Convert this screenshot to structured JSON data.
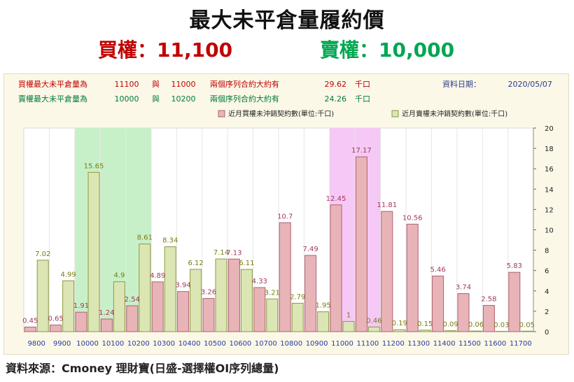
{
  "header": {
    "title": "最大未平倉量履約價",
    "call_label": "買權：11,100",
    "put_label": "賣權：10,000"
  },
  "info": {
    "call_row": {
      "label": "買權最大未平倉量為",
      "strike1": "11100",
      "conn": "與",
      "strike2": "11000",
      "desc": "兩個序列合約大約有",
      "value": "29.62",
      "unit": "千口"
    },
    "put_row": {
      "label": "賣權最大未平倉量為",
      "strike1": "10000",
      "conn": "與",
      "strike2": "10200",
      "desc": "兩個序列合約大約有",
      "value": "24.26",
      "unit": "千口"
    },
    "date_label": "資料日期：",
    "date_value": "2020/05/07"
  },
  "colors": {
    "call_fill": "#e8b4b8",
    "call_stroke": "#b06070",
    "put_fill": "#dce6b4",
    "put_stroke": "#8a9a40",
    "call_text": "#a03a5a",
    "put_text": "#7a7a10",
    "green_highlight": "#c8f0c8",
    "pink_highlight": "#f5c8f5"
  },
  "chart_data": {
    "type": "bar",
    "categories": [
      "9800",
      "9900",
      "10000",
      "10100",
      "10200",
      "10300",
      "10400",
      "10500",
      "10600",
      "10700",
      "10800",
      "10900",
      "11000",
      "11100",
      "11200",
      "11300",
      "11400",
      "11500",
      "11600",
      "11700"
    ],
    "series": [
      {
        "name": "近月買權未沖銷契約數(單位:千口)",
        "values": [
          0.45,
          0.65,
          1.91,
          1.24,
          2.54,
          4.89,
          3.94,
          3.26,
          7.13,
          4.33,
          10.7,
          7.49,
          12.45,
          17.17,
          11.81,
          10.56,
          5.46,
          3.74,
          2.58,
          5.83
        ]
      },
      {
        "name": "近月賣權未沖銷契約數(單位:千口)",
        "values": [
          7.02,
          4.99,
          15.65,
          4.9,
          8.61,
          8.34,
          6.12,
          7.14,
          6.11,
          3.21,
          2.79,
          1.95,
          1,
          0.46,
          0.19,
          0.15,
          0.09,
          0.06,
          0.03,
          0.05
        ]
      }
    ],
    "ylim": [
      0,
      20
    ],
    "yticks": [
      0,
      2,
      4,
      6,
      8,
      10,
      12,
      14,
      16,
      18,
      20
    ],
    "highlight_ranges": [
      {
        "from": "10000",
        "to": "10200",
        "color": "green"
      },
      {
        "from": "11000",
        "to": "11100",
        "color": "pink"
      }
    ],
    "legend_position": "top-right",
    "grid": true
  },
  "footer": {
    "source": "資料來源：Cmoney 理財寶(日盛-選擇權OI序列總量)"
  }
}
